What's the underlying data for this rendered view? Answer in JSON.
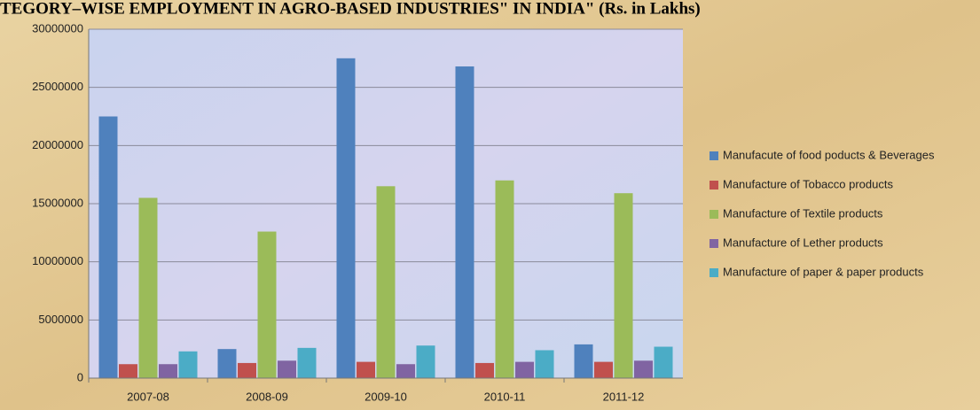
{
  "chart_data": {
    "type": "bar",
    "title": "TEGORY–WISE EMPLOYMENT IN AGRO-BASED INDUSTRIES\" IN INDIA\" (Rs. in Lakhs)",
    "categories": [
      "2007-08",
      "2008-09",
      "2009-10",
      "2010-11",
      "2011-12"
    ],
    "series": [
      {
        "name": "Manufacute of food poducts & Beverages",
        "color": "#4f81bd",
        "values": [
          22500000,
          2500000,
          27500000,
          26800000,
          2900000
        ]
      },
      {
        "name": "Manufacture of Tobacco products",
        "color": "#c0504d",
        "values": [
          1200000,
          1300000,
          1400000,
          1300000,
          1400000
        ]
      },
      {
        "name": "Manufacture of Textile products",
        "color": "#9bbb59",
        "values": [
          15500000,
          12600000,
          16500000,
          17000000,
          15900000
        ]
      },
      {
        "name": "Manufacture of Lether products",
        "color": "#8064a2",
        "values": [
          1200000,
          1500000,
          1200000,
          1400000,
          1500000
        ]
      },
      {
        "name": "Manufacture of paper & paper products",
        "color": "#4bacc6",
        "values": [
          2300000,
          2600000,
          2800000,
          2400000,
          2700000
        ]
      }
    ],
    "ylim": [
      0,
      30000000
    ],
    "yticks": [
      0,
      5000000,
      10000000,
      15000000,
      20000000,
      25000000,
      30000000
    ],
    "grid": true,
    "legend": "right"
  }
}
